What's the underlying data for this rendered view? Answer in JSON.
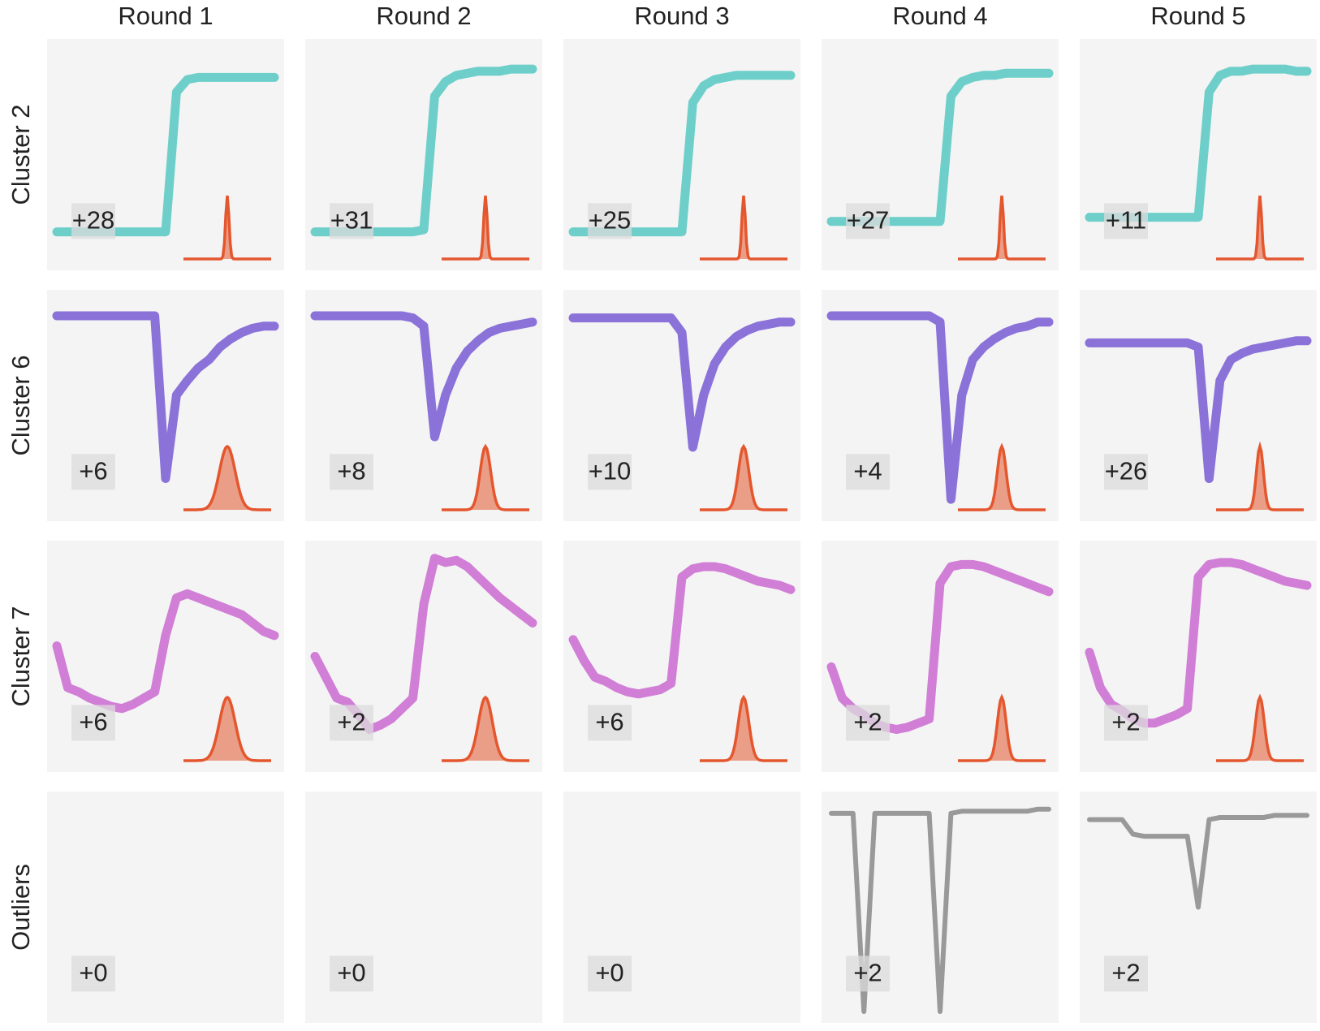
{
  "chart_data": {
    "type": "small-multiples",
    "columns": [
      "Round 1",
      "Round 2",
      "Round 3",
      "Round 4",
      "Round 5"
    ],
    "rows": [
      {
        "name": "Cluster 2",
        "color": "#6ecfca"
      },
      {
        "name": "Cluster 6",
        "color": "#8b72d9"
      },
      {
        "name": "Cluster 7",
        "color": "#d17ed6"
      },
      {
        "name": "Outliers",
        "color": "#999999"
      }
    ],
    "inset_color": "#e4572e",
    "panels": [
      [
        {
          "label": "+28",
          "spread": 0.02,
          "values": [
            0.13,
            0.13,
            0.13,
            0.13,
            0.13,
            0.13,
            0.13,
            0.13,
            0.13,
            0.13,
            0.13,
            0.8,
            0.86,
            0.87,
            0.87,
            0.87,
            0.87,
            0.87,
            0.87,
            0.87,
            0.87
          ]
        },
        {
          "label": "+31",
          "spread": 0.02,
          "values": [
            0.13,
            0.13,
            0.13,
            0.13,
            0.13,
            0.13,
            0.13,
            0.13,
            0.13,
            0.13,
            0.14,
            0.78,
            0.85,
            0.88,
            0.89,
            0.9,
            0.9,
            0.9,
            0.91,
            0.91,
            0.91
          ]
        },
        {
          "label": "+25",
          "spread": 0.02,
          "values": [
            0.13,
            0.13,
            0.13,
            0.13,
            0.13,
            0.13,
            0.13,
            0.13,
            0.13,
            0.13,
            0.13,
            0.75,
            0.83,
            0.86,
            0.87,
            0.88,
            0.88,
            0.88,
            0.88,
            0.88,
            0.88
          ]
        },
        {
          "label": "+27",
          "spread": 0.02,
          "values": [
            0.18,
            0.18,
            0.18,
            0.18,
            0.18,
            0.18,
            0.18,
            0.18,
            0.18,
            0.18,
            0.18,
            0.78,
            0.85,
            0.87,
            0.88,
            0.88,
            0.89,
            0.89,
            0.89,
            0.89,
            0.89
          ]
        },
        {
          "label": "+11",
          "spread": 0.02,
          "values": [
            0.2,
            0.2,
            0.2,
            0.2,
            0.2,
            0.2,
            0.2,
            0.2,
            0.2,
            0.2,
            0.2,
            0.8,
            0.88,
            0.9,
            0.9,
            0.91,
            0.91,
            0.91,
            0.91,
            0.9,
            0.9
          ]
        }
      ],
      [
        {
          "label": "+6",
          "spread": 0.09,
          "values": [
            0.93,
            0.93,
            0.93,
            0.93,
            0.93,
            0.93,
            0.93,
            0.93,
            0.93,
            0.93,
            0.15,
            0.55,
            0.62,
            0.68,
            0.72,
            0.78,
            0.82,
            0.85,
            0.87,
            0.88,
            0.88
          ]
        },
        {
          "label": "+8",
          "spread": 0.06,
          "values": [
            0.93,
            0.93,
            0.93,
            0.93,
            0.93,
            0.93,
            0.93,
            0.93,
            0.93,
            0.92,
            0.88,
            0.35,
            0.55,
            0.68,
            0.76,
            0.81,
            0.85,
            0.87,
            0.88,
            0.89,
            0.9
          ]
        },
        {
          "label": "+10",
          "spread": 0.06,
          "values": [
            0.92,
            0.92,
            0.92,
            0.92,
            0.92,
            0.92,
            0.92,
            0.92,
            0.92,
            0.92,
            0.85,
            0.3,
            0.55,
            0.7,
            0.78,
            0.83,
            0.86,
            0.88,
            0.89,
            0.9,
            0.9
          ]
        },
        {
          "label": "+4",
          "spread": 0.05,
          "values": [
            0.93,
            0.93,
            0.93,
            0.93,
            0.93,
            0.93,
            0.93,
            0.93,
            0.93,
            0.93,
            0.9,
            0.05,
            0.55,
            0.72,
            0.78,
            0.82,
            0.85,
            0.87,
            0.88,
            0.9,
            0.9
          ]
        },
        {
          "label": "+26",
          "spread": 0.04,
          "values": [
            0.8,
            0.8,
            0.8,
            0.8,
            0.8,
            0.8,
            0.8,
            0.8,
            0.8,
            0.8,
            0.78,
            0.15,
            0.62,
            0.72,
            0.75,
            0.77,
            0.78,
            0.79,
            0.8,
            0.81,
            0.81
          ]
        }
      ],
      [
        {
          "label": "+6",
          "spread": 0.09,
          "values": [
            0.55,
            0.35,
            0.33,
            0.3,
            0.28,
            0.26,
            0.25,
            0.27,
            0.3,
            0.33,
            0.6,
            0.78,
            0.8,
            0.78,
            0.76,
            0.74,
            0.72,
            0.7,
            0.66,
            0.62,
            0.6
          ]
        },
        {
          "label": "+2",
          "spread": 0.08,
          "values": [
            0.5,
            0.4,
            0.3,
            0.28,
            0.22,
            0.15,
            0.17,
            0.2,
            0.25,
            0.3,
            0.75,
            0.97,
            0.95,
            0.96,
            0.93,
            0.88,
            0.83,
            0.78,
            0.74,
            0.7,
            0.66
          ]
        },
        {
          "label": "+6",
          "spread": 0.06,
          "values": [
            0.58,
            0.48,
            0.4,
            0.38,
            0.35,
            0.33,
            0.32,
            0.33,
            0.34,
            0.37,
            0.88,
            0.92,
            0.93,
            0.93,
            0.92,
            0.9,
            0.88,
            0.86,
            0.85,
            0.84,
            0.82
          ]
        },
        {
          "label": "+2",
          "spread": 0.05,
          "values": [
            0.45,
            0.3,
            0.25,
            0.22,
            0.18,
            0.16,
            0.15,
            0.16,
            0.18,
            0.2,
            0.85,
            0.93,
            0.94,
            0.94,
            0.93,
            0.91,
            0.89,
            0.87,
            0.85,
            0.83,
            0.81
          ]
        },
        {
          "label": "+2",
          "spread": 0.05,
          "values": [
            0.52,
            0.35,
            0.27,
            0.24,
            0.2,
            0.18,
            0.18,
            0.2,
            0.22,
            0.25,
            0.88,
            0.94,
            0.95,
            0.95,
            0.94,
            0.92,
            0.9,
            0.88,
            0.86,
            0.85,
            0.84
          ]
        }
      ],
      [
        {
          "label": "+0",
          "values": []
        },
        {
          "label": "+0",
          "values": []
        },
        {
          "label": "+0",
          "values": []
        },
        {
          "label": "+2",
          "values": [
            0.95,
            0.95,
            0.95,
            0.0,
            0.95,
            0.95,
            0.95,
            0.95,
            0.95,
            0.95,
            0.0,
            0.95,
            0.96,
            0.96,
            0.96,
            0.96,
            0.96,
            0.96,
            0.96,
            0.97,
            0.97
          ]
        },
        {
          "label": "+2",
          "values": [
            0.92,
            0.92,
            0.92,
            0.92,
            0.85,
            0.84,
            0.84,
            0.84,
            0.84,
            0.84,
            0.5,
            0.92,
            0.93,
            0.93,
            0.93,
            0.93,
            0.93,
            0.94,
            0.94,
            0.94,
            0.94
          ]
        }
      ]
    ]
  }
}
